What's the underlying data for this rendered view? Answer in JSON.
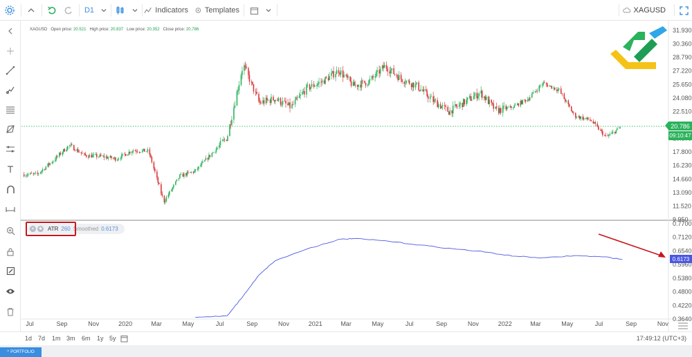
{
  "toolbar": {
    "timeframe": "D1",
    "indicators_label": "Indicators",
    "templates_label": "Templates",
    "symbol": "XAGUSD"
  },
  "legend": {
    "symbol": "XAGUSD",
    "open_label": "Open price:",
    "open_value": "20.521",
    "high_label": "High price:",
    "high_value": "20.837",
    "low_label": "Low price:",
    "low_value": "20.352",
    "close_label": "Close price:",
    "close_value": "20.786"
  },
  "indicator": {
    "name": "ATR",
    "period": "260",
    "smoothed_label": "Smoothed",
    "value": "0.6173"
  },
  "price_badge": "20.786",
  "time_badge": "09:10:47",
  "atr_badge": "0.6173",
  "ranges": [
    "1d",
    "7d",
    "1m",
    "3m",
    "6m",
    "1y",
    "5y"
  ],
  "clock": "17:49:12 (UTC+3)",
  "portfolio_label": "PORTFOLIO",
  "colors": {
    "up": "#2bb25c",
    "down": "#d8383a",
    "atr_line": "#4a57e0",
    "accent": "#3a8ee0",
    "annotation": "#c8161d"
  },
  "chart_data": [
    {
      "type": "candlestick",
      "title": "XAGUSD",
      "xlabel": "",
      "ylabel": "",
      "x_ticks": [
        "Jul",
        "Sep",
        "Nov",
        "2020",
        "Mar",
        "May",
        "Jul",
        "Sep",
        "Nov",
        "2021",
        "Mar",
        "May",
        "Jul",
        "Sep",
        "Nov",
        "2022",
        "Mar",
        "May",
        "Jul",
        "Sep",
        "Nov"
      ],
      "y_ticks": [
        "31.930",
        "30.360",
        "28.790",
        "27.220",
        "25.650",
        "24.080",
        "22.510",
        "20.940",
        "19.370",
        "17.800",
        "16.230",
        "14.660",
        "13.090",
        "11.520",
        "9.950"
      ],
      "ylim": [
        9.95,
        31.93
      ],
      "series": [
        {
          "name": "XAGUSD",
          "approx_close_path": [
            [
              "2019-07",
              15.2
            ],
            [
              "2019-08",
              16.8
            ],
            [
              "2019-09",
              18.6
            ],
            [
              "2019-10",
              17.4
            ],
            [
              "2019-11",
              17.3
            ],
            [
              "2019-12",
              17.0
            ],
            [
              "2020-01",
              18.0
            ],
            [
              "2020-02",
              17.9
            ],
            [
              "2020-03",
              12.0
            ],
            [
              "2020-04",
              15.0
            ],
            [
              "2020-05",
              15.6
            ],
            [
              "2020-06",
              17.6
            ],
            [
              "2020-07",
              19.5
            ],
            [
              "2020-08",
              28.0
            ],
            [
              "2020-09",
              23.5
            ],
            [
              "2020-10",
              24.0
            ],
            [
              "2020-11",
              23.0
            ],
            [
              "2020-12",
              25.2
            ],
            [
              "2021-01",
              26.0
            ],
            [
              "2021-02",
              27.3
            ],
            [
              "2021-03",
              25.5
            ],
            [
              "2021-04",
              26.0
            ],
            [
              "2021-05",
              27.8
            ],
            [
              "2021-06",
              26.3
            ],
            [
              "2021-07",
              25.5
            ],
            [
              "2021-08",
              23.8
            ],
            [
              "2021-09",
              22.5
            ],
            [
              "2021-10",
              23.6
            ],
            [
              "2021-11",
              24.7
            ],
            [
              "2021-12",
              22.6
            ],
            [
              "2022-01",
              23.0
            ],
            [
              "2022-02",
              24.0
            ],
            [
              "2022-03",
              25.8
            ],
            [
              "2022-04",
              25.0
            ],
            [
              "2022-05",
              22.0
            ],
            [
              "2022-06",
              21.5
            ],
            [
              "2022-07",
              19.5
            ],
            [
              "2022-08",
              20.8
            ]
          ]
        }
      ]
    },
    {
      "type": "line",
      "title": "ATR 260 Smoothed",
      "xlabel": "",
      "ylabel": "",
      "y_ticks": [
        "0.7700",
        "0.7120",
        "0.6540",
        "0.5960",
        "0.5380",
        "0.4800",
        "0.4220",
        "0.3640"
      ],
      "ylim": [
        0.364,
        0.77
      ],
      "series": [
        {
          "name": "ATR",
          "x": [
            "2020-05",
            "2020-07",
            "2020-08",
            "2020-09",
            "2020-10",
            "2020-12",
            "2021-02",
            "2021-03",
            "2021-05",
            "2021-07",
            "2021-09",
            "2021-11",
            "2022-01",
            "2022-03",
            "2022-05",
            "2022-07",
            "2022-08"
          ],
          "values": [
            0.371,
            0.378,
            0.462,
            0.554,
            0.612,
            0.662,
            0.703,
            0.707,
            0.697,
            0.681,
            0.665,
            0.652,
            0.633,
            0.624,
            0.634,
            0.628,
            0.618
          ]
        }
      ]
    }
  ]
}
